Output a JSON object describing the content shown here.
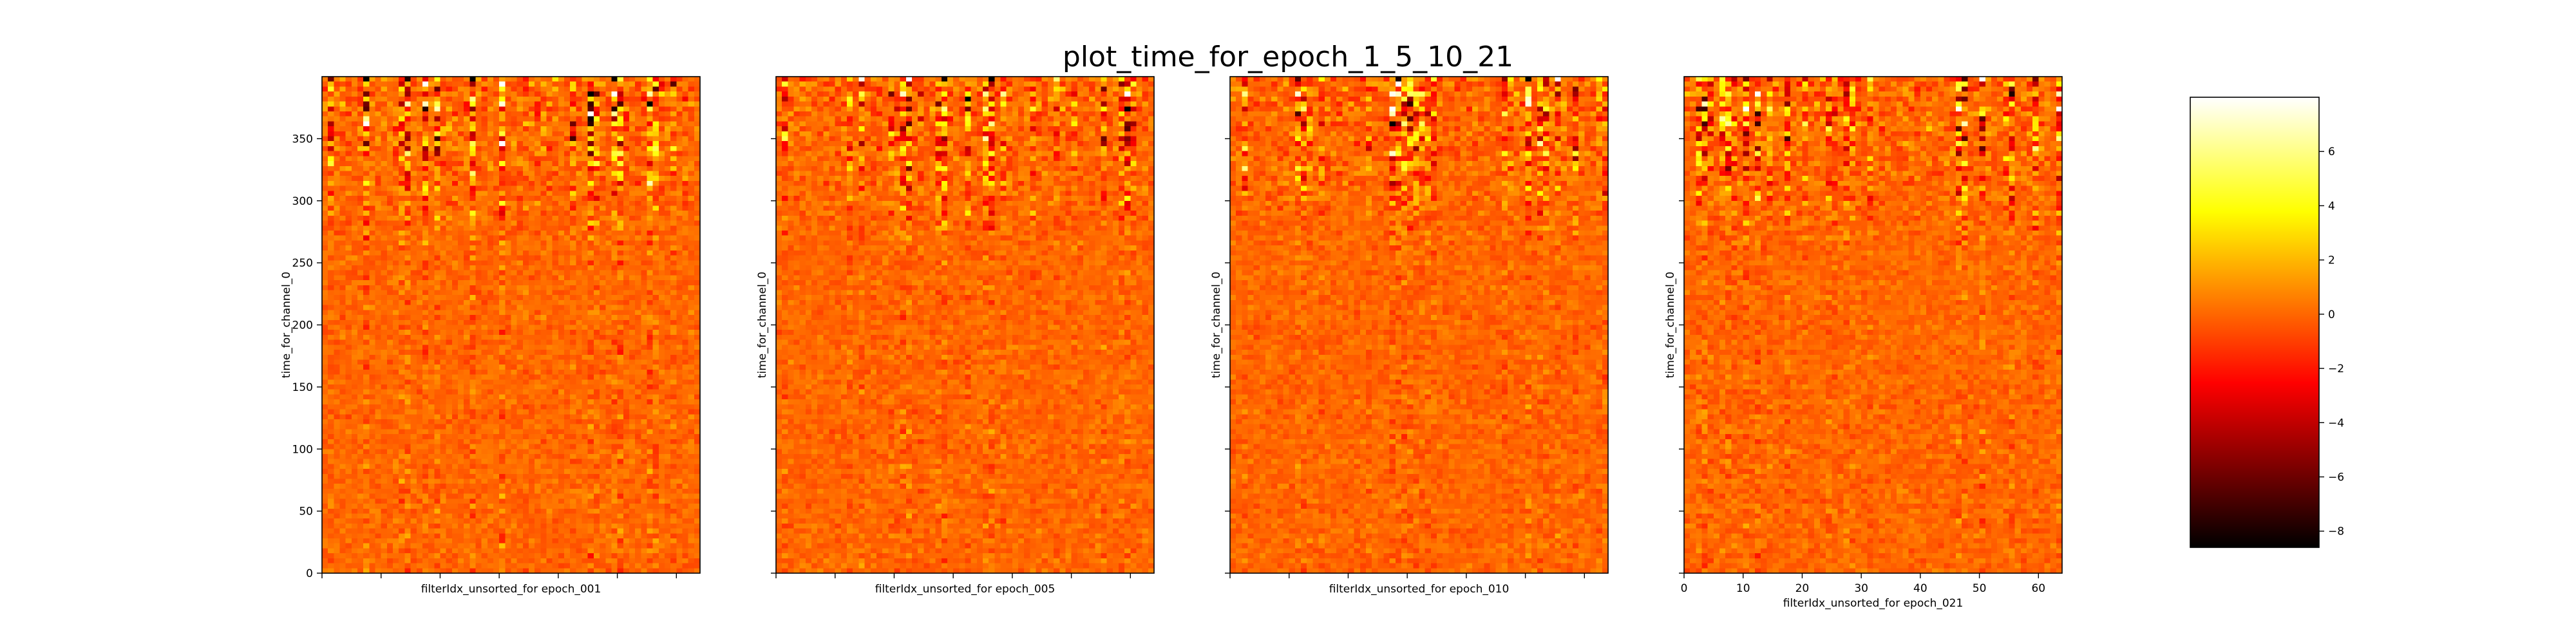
{
  "figure": {
    "title": "plot_time_for_epoch_1_5_10_21"
  },
  "chart_data": [
    {
      "type": "heatmap",
      "xlabel": "filterIdx_unsorted_for epoch_001",
      "ylabel": "time_for_channel_0",
      "xlim": [
        0,
        64
      ],
      "ylim": [
        0,
        400
      ],
      "yticks": [
        0,
        50,
        100,
        150,
        200,
        250,
        300,
        350
      ],
      "show_xtick_labels": false,
      "show_ytick_labels": true,
      "activity": "high"
    },
    {
      "type": "heatmap",
      "xlabel": "filterIdx_unsorted_for epoch_005",
      "ylabel": "time_for_channel_0",
      "xlim": [
        0,
        64
      ],
      "ylim": [
        0,
        400
      ],
      "show_xtick_labels": false,
      "show_ytick_labels": false,
      "activity": "medium"
    },
    {
      "type": "heatmap",
      "xlabel": "filterIdx_unsorted_for epoch_010",
      "ylabel": "time_for_channel_0",
      "xlim": [
        0,
        64
      ],
      "ylim": [
        0,
        400
      ],
      "show_xtick_labels": false,
      "show_ytick_labels": false,
      "activity": "medium"
    },
    {
      "type": "heatmap",
      "xlabel": "filterIdx_unsorted_for epoch_021",
      "ylabel": "time_for_channel_0",
      "xlim": [
        0,
        64
      ],
      "ylim": [
        0,
        400
      ],
      "xticks": [
        0,
        10,
        20,
        30,
        40,
        50,
        60
      ],
      "show_xtick_labels": true,
      "show_ytick_labels": false,
      "activity": "medium"
    }
  ],
  "colorbar": {
    "colormap": "hot",
    "range": [
      -8.6,
      8.0
    ],
    "ticks": [
      -8,
      -6,
      -4,
      -2,
      0,
      2,
      4,
      6
    ],
    "tick_labels": [
      "−8",
      "−6",
      "−4",
      "−2",
      "0",
      "2",
      "4",
      "6"
    ]
  }
}
